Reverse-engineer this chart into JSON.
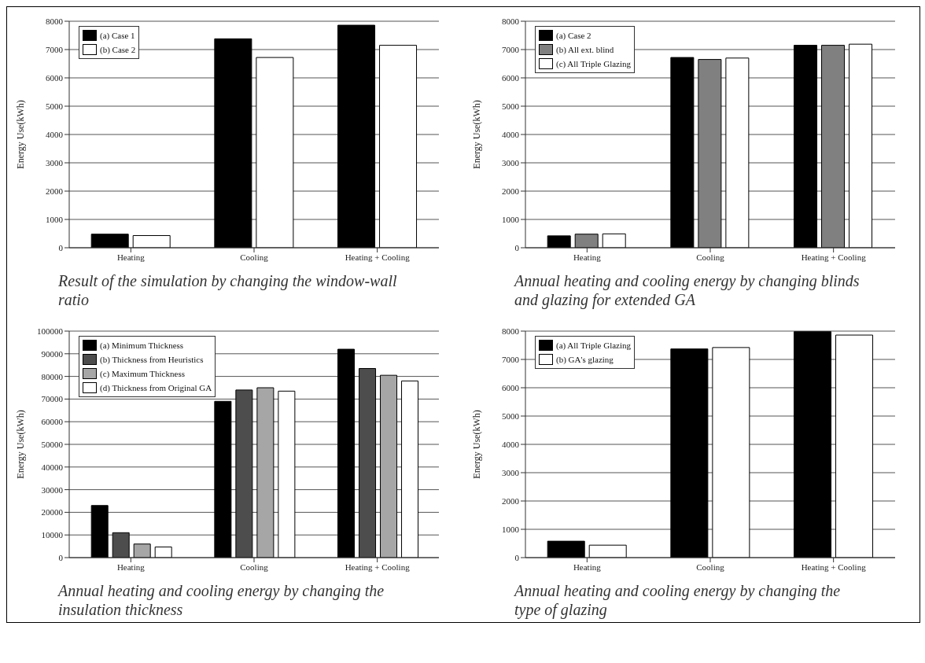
{
  "chart_data": [
    {
      "type": "bar",
      "title": "Result of the simulation by changing the window-wall ratio",
      "ylabel": "Energy Use(kWh)",
      "categories": [
        "Heating",
        "Cooling",
        "Heating + Cooling"
      ],
      "ylim": [
        0,
        8000
      ],
      "yticks": [
        0,
        1000,
        2000,
        3000,
        4000,
        5000,
        6000,
        7000,
        8000
      ],
      "grid": "y",
      "legend": "top left",
      "series": [
        {
          "name": "(a) Case 1",
          "color": "#000000",
          "values": [
            480,
            7380,
            7860
          ]
        },
        {
          "name": "(b) Case 2",
          "color": "#ffffff",
          "values": [
            430,
            6720,
            7150
          ]
        }
      ]
    },
    {
      "type": "bar",
      "title": "Annual heating and cooling energy by changing blinds and glazing for extended GA",
      "ylabel": "Energy Use(kWh)",
      "categories": [
        "Heating",
        "Cooling",
        "Heating + Cooling"
      ],
      "ylim": [
        0,
        8000
      ],
      "yticks": [
        0,
        1000,
        2000,
        3000,
        4000,
        5000,
        6000,
        7000,
        8000
      ],
      "grid": "y",
      "legend": "top left",
      "series": [
        {
          "name": "(a) Case 2",
          "color": "#000000",
          "values": [
            420,
            6720,
            7150
          ]
        },
        {
          "name": "(b) All ext. blind",
          "color": "#808080",
          "values": [
            480,
            6650,
            7150
          ]
        },
        {
          "name": "(c) All Triple Glazing",
          "color": "#ffffff",
          "values": [
            490,
            6700,
            7190
          ]
        }
      ]
    },
    {
      "type": "bar",
      "title": "Annual heating and cooling energy by changing the insulation thickness",
      "ylabel": "Energy Use(kWh)",
      "categories": [
        "Heating",
        "Cooling",
        "Heating + Cooling"
      ],
      "ylim": [
        0,
        100000
      ],
      "yticks": [
        0,
        10000,
        20000,
        30000,
        40000,
        50000,
        60000,
        70000,
        80000,
        90000,
        100000
      ],
      "grid": "y",
      "legend": "top left",
      "series": [
        {
          "name": "(a) Minimum Thickness",
          "color": "#000000",
          "values": [
            23000,
            69000,
            92000
          ]
        },
        {
          "name": "(b) Thickness from Heuristics",
          "color": "#4d4d4d",
          "values": [
            11000,
            74000,
            83500
          ]
        },
        {
          "name": "(c) Maximum Thickness",
          "color": "#a6a6a6",
          "values": [
            6000,
            75000,
            80500
          ]
        },
        {
          "name": "(d) Thickness from Original GA",
          "color": "#ffffff",
          "values": [
            4700,
            73500,
            78000
          ]
        }
      ]
    },
    {
      "type": "bar",
      "title": "Annual heating and cooling energy by changing the type of glazing",
      "ylabel": "Energy Use(kWh)",
      "categories": [
        "Heating",
        "Cooling",
        "Heating + Cooling"
      ],
      "ylim": [
        0,
        8000
      ],
      "yticks": [
        0,
        1000,
        2000,
        3000,
        4000,
        5000,
        6000,
        7000,
        8000
      ],
      "grid": "y",
      "legend": "top left",
      "series": [
        {
          "name": "(a) All Triple Glazing",
          "color": "#000000",
          "values": [
            580,
            7370,
            7980
          ]
        },
        {
          "name": "(b) GA's glazing",
          "color": "#ffffff",
          "values": [
            440,
            7420,
            7860
          ]
        }
      ]
    }
  ]
}
